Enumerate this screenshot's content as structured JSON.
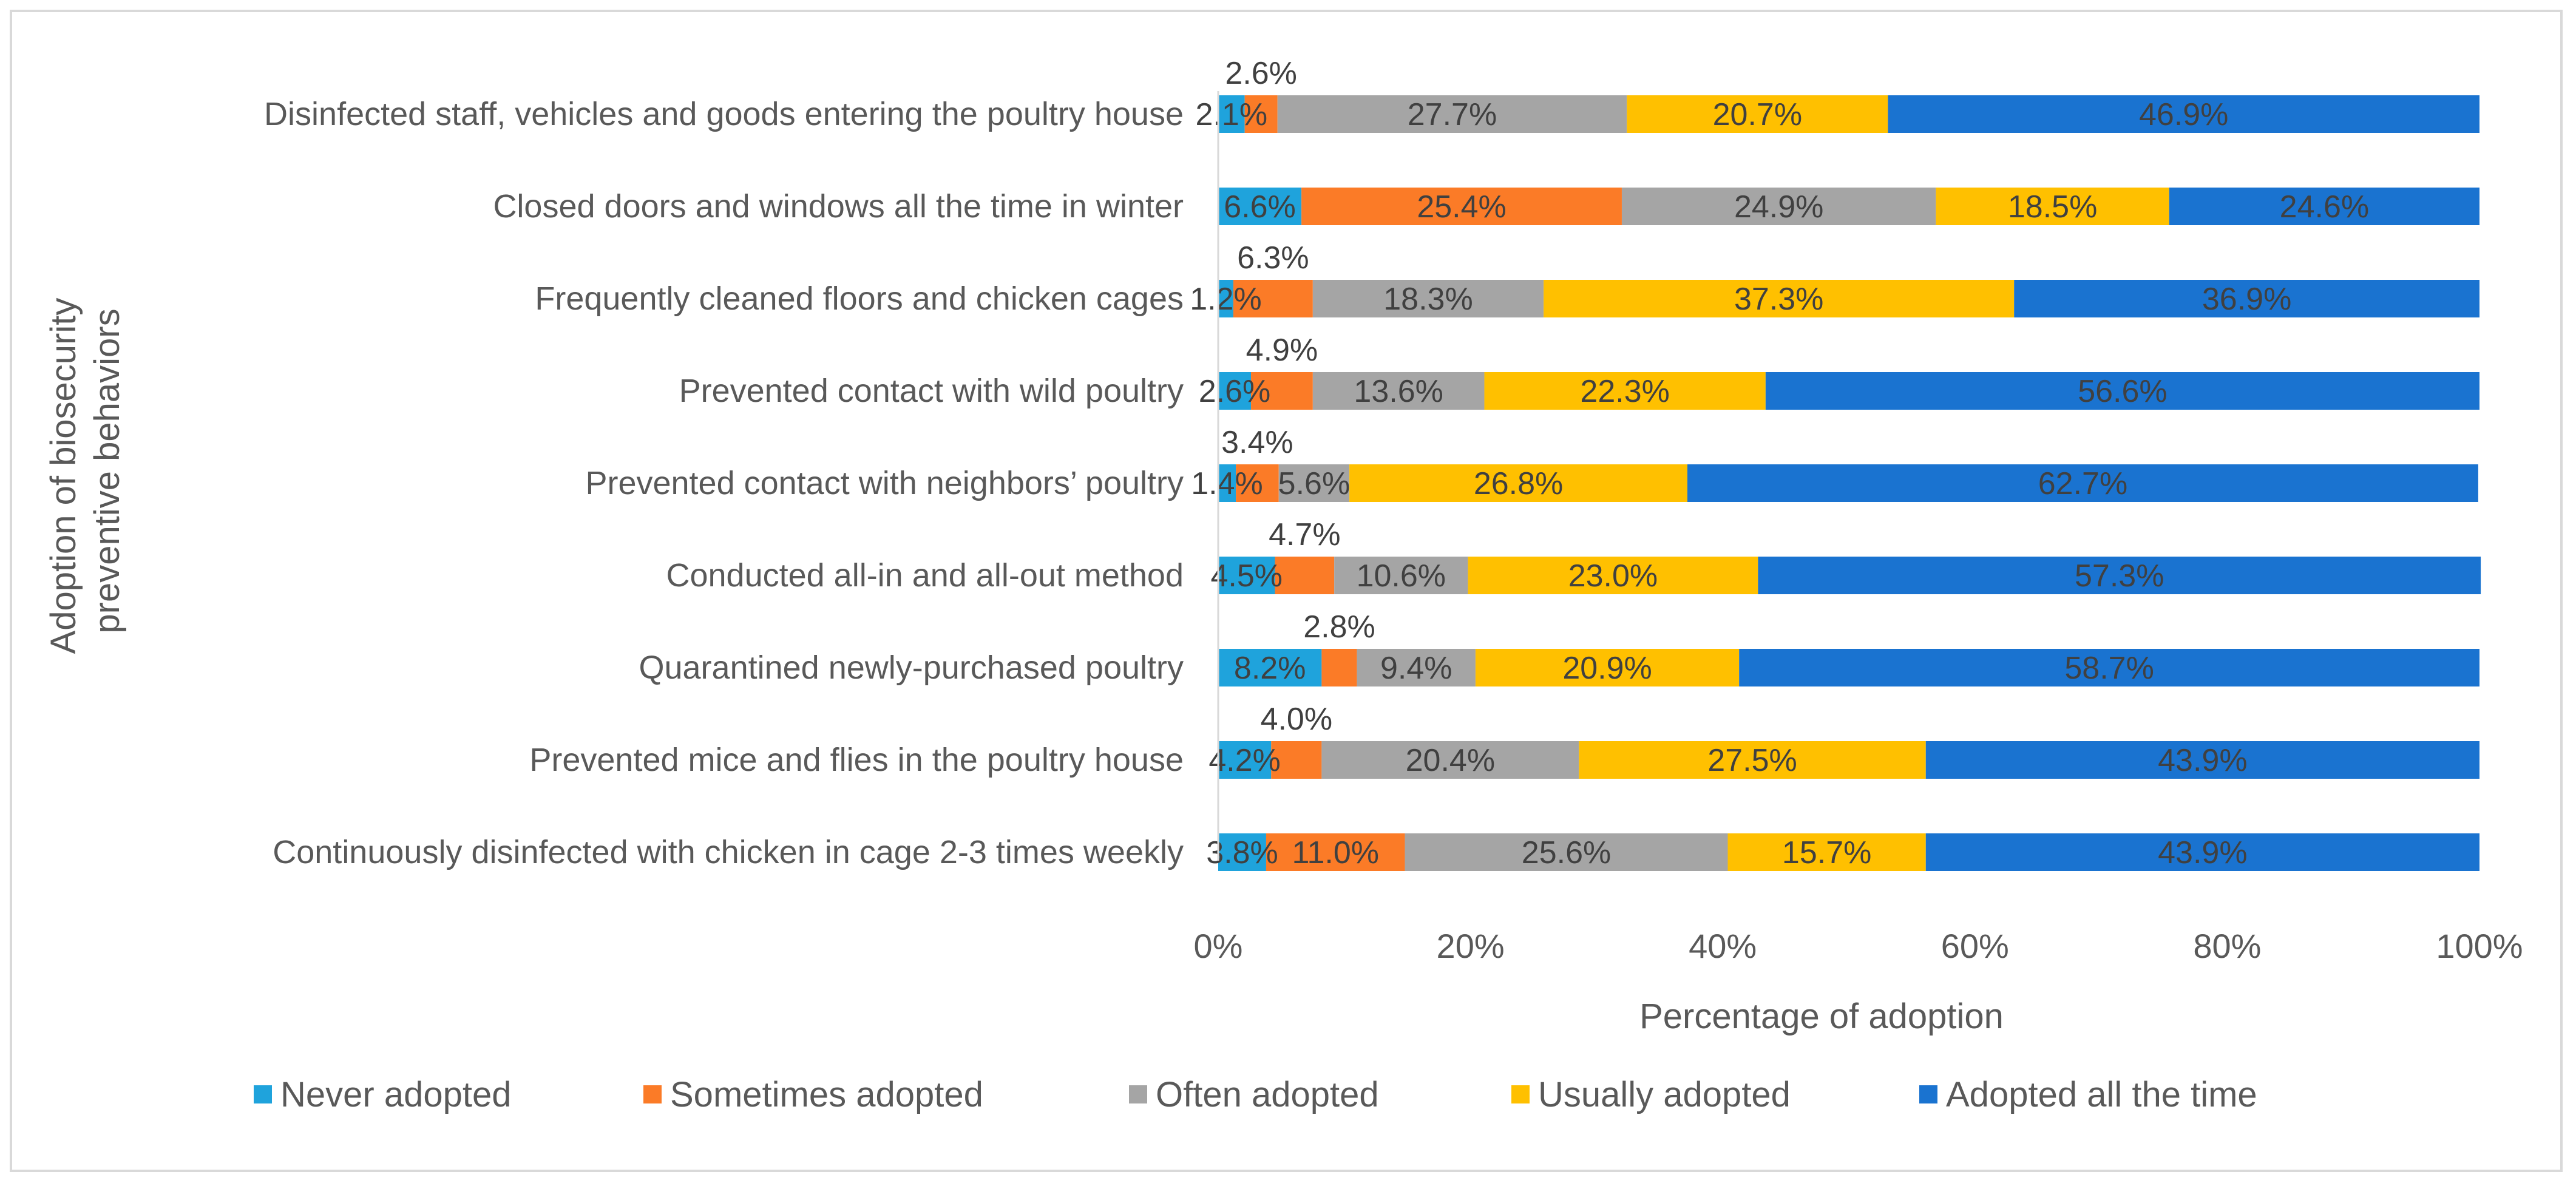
{
  "chart_data": {
    "type": "bar",
    "orientation": "horizontal",
    "stacked": "percent",
    "title": "",
    "xlabel": "Percentage of adoption",
    "ylabel": "Adoption of biosecurity preventive behaviors",
    "xlim": [
      0,
      100
    ],
    "x_ticks": [
      "0%",
      "20%",
      "40%",
      "60%",
      "80%",
      "100%"
    ],
    "grid": false,
    "legend_position": "bottom",
    "categories": [
      "Disinfected staff, vehicles and goods entering the poultry house",
      "Closed doors and windows all the time in winter",
      "Frequently cleaned floors and chicken cages",
      "Prevented contact with wild poultry",
      "Prevented contact with neighbors’ poultry",
      "Conducted all-in and all-out method",
      "Quarantined newly-purchased poultry",
      "Prevented mice and flies in the poultry house",
      "Continuously disinfected with chicken in cage 2-3 times weekly"
    ],
    "series": [
      {
        "name": "Never adopted",
        "color": "#1fa3dc",
        "label_color": "#404040",
        "values": [
          2.1,
          6.6,
          1.2,
          2.6,
          1.4,
          4.5,
          8.2,
          4.2,
          3.8
        ],
        "labels": [
          "2.1%",
          "6.6%",
          "1.2%",
          "2.6%",
          "1.4%",
          "4.5%",
          "8.2%",
          "4.2%",
          "3.8%"
        ]
      },
      {
        "name": "Sometimes adopted",
        "color": "#fb7b27",
        "label_color": "#404040",
        "values": [
          2.6,
          25.4,
          6.3,
          4.9,
          3.4,
          4.7,
          2.8,
          4.0,
          11.0
        ],
        "labels": [
          "2.6%",
          "25.4%",
          "6.3%",
          "4.9%",
          "3.4%",
          "4.7%",
          "2.8%",
          "4.0%",
          "11.0%"
        ]
      },
      {
        "name": "Often adopted",
        "color": "#a5a5a5",
        "label_color": "#404040",
        "values": [
          27.7,
          24.9,
          18.3,
          13.6,
          5.6,
          10.6,
          9.4,
          20.4,
          25.6
        ],
        "labels": [
          "27.7%",
          "24.9%",
          "18.3%",
          "13.6%",
          "5.6%",
          "10.6%",
          "9.4%",
          "20.4%",
          "25.6%"
        ]
      },
      {
        "name": "Usually adopted",
        "color": "#ffc000",
        "label_color": "#404040",
        "values": [
          20.7,
          18.5,
          37.3,
          22.3,
          26.8,
          23.0,
          20.9,
          27.5,
          15.7
        ],
        "labels": [
          "20.7%",
          "18.5%",
          "37.3%",
          "22.3%",
          "26.8%",
          "23.0%",
          "20.9%",
          "27.5%",
          "15.7%"
        ]
      },
      {
        "name": "Adopted all the time",
        "color": "#1a73d0",
        "label_color": "#404040",
        "values": [
          46.9,
          24.6,
          36.9,
          56.6,
          62.7,
          57.3,
          58.7,
          43.9,
          43.9
        ],
        "labels": [
          "46.9%",
          "24.6%",
          "36.9%",
          "56.6%",
          "62.7%",
          "57.3%",
          "58.7%",
          "43.9%",
          "43.9%"
        ]
      }
    ]
  }
}
